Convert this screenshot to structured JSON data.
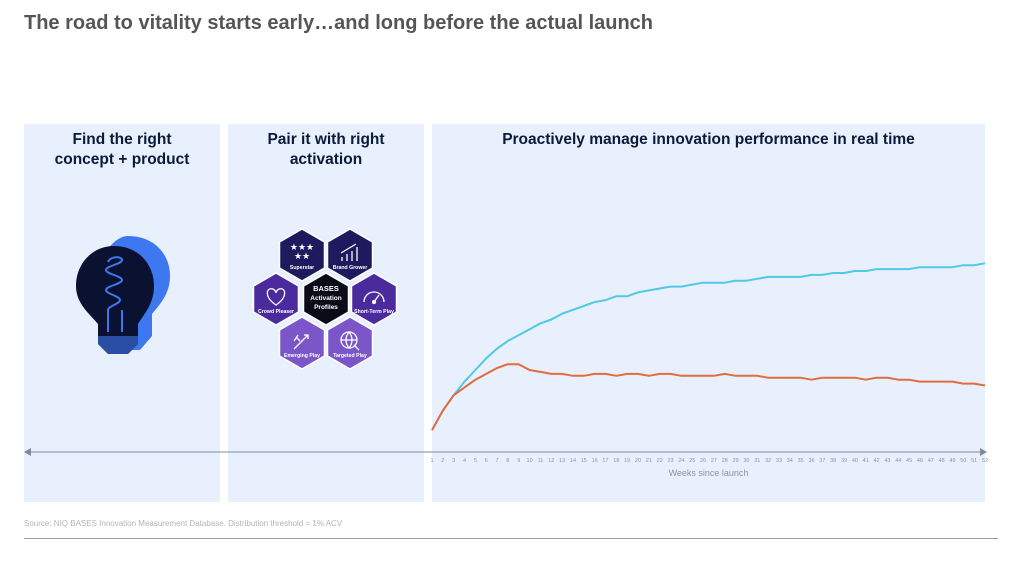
{
  "title": "The road to vitality starts early…and long before the actual launch",
  "panels": [
    {
      "heading_line1": "Find the right",
      "heading_line2": "concept + product"
    },
    {
      "heading_line1": "Pair it with right",
      "heading_line2": "activation"
    },
    {
      "heading": "Proactively manage innovation performance in real time"
    }
  ],
  "hex_graphic": {
    "center": [
      "BASES",
      "Activation",
      "Profiles"
    ],
    "cells": [
      {
        "label": "Superstar",
        "icon": "stars-icon",
        "color": "#1d1a5e"
      },
      {
        "label": "Brand Grower",
        "icon": "growth-chart-icon",
        "color": "#1d1a5e"
      },
      {
        "label": "Crowd Pleaser",
        "icon": "heart-icon",
        "color": "#4b2a9e"
      },
      {
        "label": "Short-Term Play",
        "icon": "gauge-icon",
        "color": "#4b2a9e"
      },
      {
        "label": "Emerging Play",
        "icon": "sparkle-icon",
        "color": "#7a56c9"
      },
      {
        "label": "Targeted Play",
        "icon": "globe-search-icon",
        "color": "#7a56c9"
      }
    ]
  },
  "chart_data": {
    "type": "line",
    "xlabel": "Weeks since launch",
    "x": [
      1,
      2,
      3,
      4,
      5,
      6,
      7,
      8,
      9,
      10,
      11,
      12,
      13,
      14,
      15,
      16,
      17,
      18,
      19,
      20,
      21,
      22,
      23,
      24,
      25,
      26,
      27,
      28,
      29,
      30,
      31,
      32,
      33,
      34,
      35,
      36,
      37,
      38,
      39,
      40,
      41,
      42,
      43,
      44,
      45,
      46,
      47,
      48,
      49,
      50,
      51,
      52
    ],
    "xlim": [
      1,
      52
    ],
    "ylim": [
      0,
      100
    ],
    "grid": false,
    "series": [
      {
        "color": "#4fc9e6",
        "values": [
          2,
          12,
          20,
          27,
          33,
          39,
          44,
          48,
          51,
          54,
          57,
          59,
          62,
          64,
          66,
          68,
          69,
          71,
          71,
          73,
          74,
          75,
          76,
          76,
          77,
          78,
          78,
          78,
          79,
          79,
          80,
          81,
          81,
          81,
          81,
          82,
          82,
          83,
          83,
          84,
          84,
          85,
          85,
          85,
          85,
          86,
          86,
          86,
          86,
          87,
          87,
          88
        ]
      },
      {
        "color": "#e06c3f",
        "values": [
          2,
          12,
          20,
          24,
          28,
          31,
          34,
          36,
          36,
          33,
          32,
          31,
          31,
          30,
          30,
          31,
          31,
          30,
          31,
          31,
          30,
          31,
          31,
          30,
          30,
          30,
          30,
          31,
          30,
          30,
          30,
          29,
          29,
          29,
          29,
          28,
          29,
          29,
          29,
          29,
          28,
          29,
          29,
          28,
          28,
          27,
          27,
          27,
          27,
          26,
          26,
          25
        ]
      }
    ]
  },
  "source_note": "Source: NIQ BASES Innovation Measurement Database. Distribution threshold = 1% ACV"
}
